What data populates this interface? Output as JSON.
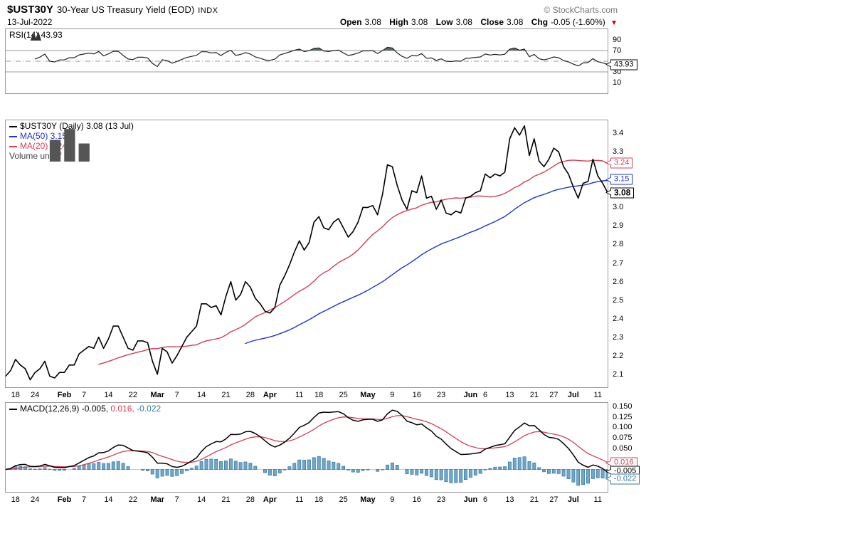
{
  "header": {
    "symbol": "$UST30Y",
    "title": "30-Year US Treasury Yield (EOD)",
    "exchange": "INDX",
    "source": "© StockCharts.com",
    "date": "13-Jul-2022",
    "quote": {
      "open_label": "Open",
      "open": "3.08",
      "high_label": "High",
      "high": "3.08",
      "low_label": "Low",
      "low": "3.08",
      "close_label": "Close",
      "close": "3.08",
      "chg_label": "Chg",
      "chg": "-0.05 (-1.60%)",
      "direction_icon": "▼"
    }
  },
  "panels": {
    "rsi": {
      "legend": "RSI(14) 43.93",
      "yticks": [
        90,
        70,
        30,
        10
      ]
    },
    "price": {
      "legend_price": "$UST30Y (Daily) 3.08 (13 Jul)",
      "legend_ma50": "MA(50) 3.15",
      "legend_ma20": "MA(20) 3.24",
      "legend_volume": "Volume undef",
      "yticks": [
        3.4,
        3.3,
        3.0,
        2.9,
        2.8,
        2.7,
        2.6,
        2.5,
        2.4,
        2.3,
        2.2,
        2.1
      ]
    },
    "macd": {
      "legend_prefix": "MACD(12,26,9)",
      "macd_value": "-0.005,",
      "signal_value": "0.016,",
      "hist_value": "-0.022",
      "yticks": [
        {
          "label": "0.150",
          "value": 0.15
        },
        {
          "label": "0.125",
          "value": 0.125
        },
        {
          "label": "0.100",
          "value": 0.1
        },
        {
          "label": "0.075",
          "value": 0.075
        },
        {
          "label": "0.050",
          "value": 0.05
        }
      ]
    }
  },
  "badges": [
    {
      "panel": "rsi",
      "label": "43.93",
      "value": 43.93,
      "color": "#000000",
      "bold": false
    },
    {
      "panel": "price",
      "label": "3.24",
      "value": 3.24,
      "color": "#d04056",
      "bold": false
    },
    {
      "panel": "price",
      "label": "3.15",
      "value": 3.15,
      "color": "#2233cc",
      "bold": false
    },
    {
      "panel": "price",
      "label": "3.08",
      "value": 3.08,
      "color": "#000000",
      "bold": true
    },
    {
      "panel": "macd",
      "label": "0.016",
      "value": 0.016,
      "color": "#d04056",
      "bold": false
    },
    {
      "panel": "macd",
      "label": "-0.005",
      "value": -0.005,
      "color": "#000000",
      "bold": false
    },
    {
      "panel": "macd",
      "label": "-0.022",
      "value": -0.022,
      "color": "#38789f",
      "bold": false
    }
  ],
  "colors": {
    "price_line": "#000000",
    "ma20": "#d04056",
    "ma50": "#2233cc",
    "macd_line": "#000000",
    "signal": "#d04056",
    "hist_fill": "#6fa8c9",
    "hist_stroke": "#38789f",
    "hist_text": "#38789f",
    "rsi_line": "#222222",
    "rsi_overbought_fill": "#5a6b60",
    "grid": "#999999",
    "panel_border": "#999999",
    "source_text": "#767676",
    "change_down": "#cc0000",
    "volume_text": "#444444",
    "axis_text": "#000000"
  },
  "chart_data": {
    "type": "line",
    "title": "$UST30Y 30-Year US Treasury Yield (EOD) INDX",
    "date": "13-Jul-2022",
    "timeframe": "Daily",
    "ohlc": {
      "open": 3.08,
      "high": 3.08,
      "low": 3.08,
      "close": 3.08,
      "chg": -0.05,
      "chg_pct": -1.6
    },
    "legend_position": "top-left",
    "grid": false,
    "dates": [
      "Jan 13",
      "Jan 14",
      "Jan 18",
      "Jan 19",
      "Jan 20",
      "Jan 21",
      "Jan 24",
      "Jan 25",
      "Jan 26",
      "Jan 27",
      "Jan 28",
      "Jan 31",
      "Feb 1",
      "Feb 2",
      "Feb 3",
      "Feb 4",
      "Feb 7",
      "Feb 8",
      "Feb 9",
      "Feb 10",
      "Feb 11",
      "Feb 14",
      "Feb 15",
      "Feb 16",
      "Feb 17",
      "Feb 18",
      "Feb 22",
      "Feb 23",
      "Feb 24",
      "Feb 25",
      "Feb 28",
      "Mar 1",
      "Mar 2",
      "Mar 3",
      "Mar 4",
      "Mar 7",
      "Mar 8",
      "Mar 9",
      "Mar 10",
      "Mar 11",
      "Mar 14",
      "Mar 15",
      "Mar 16",
      "Mar 17",
      "Mar 18",
      "Mar 21",
      "Mar 22",
      "Mar 23",
      "Mar 24",
      "Mar 25",
      "Mar 28",
      "Mar 29",
      "Mar 30",
      "Mar 31",
      "Apr 1",
      "Apr 4",
      "Apr 5",
      "Apr 6",
      "Apr 7",
      "Apr 8",
      "Apr 11",
      "Apr 12",
      "Apr 13",
      "Apr 14",
      "Apr 18",
      "Apr 19",
      "Apr 20",
      "Apr 21",
      "Apr 22",
      "Apr 25",
      "Apr 26",
      "Apr 27",
      "Apr 28",
      "Apr 29",
      "May 2",
      "May 3",
      "May 4",
      "May 5",
      "May 6",
      "May 9",
      "May 10",
      "May 11",
      "May 12",
      "May 13",
      "May 16",
      "May 17",
      "May 18",
      "May 19",
      "May 20",
      "May 23",
      "May 24",
      "May 25",
      "May 26",
      "May 27",
      "May 31",
      "Jun 1",
      "Jun 2",
      "Jun 3",
      "Jun 6",
      "Jun 7",
      "Jun 8",
      "Jun 9",
      "Jun 10",
      "Jun 13",
      "Jun 14",
      "Jun 15",
      "Jun 16",
      "Jun 17",
      "Jun 21",
      "Jun 22",
      "Jun 23",
      "Jun 24",
      "Jun 27",
      "Jun 28",
      "Jun 29",
      "Jun 30",
      "Jul 1",
      "Jul 5",
      "Jul 6",
      "Jul 7",
      "Jul 8",
      "Jul 11",
      "Jul 12",
      "Jul 13"
    ],
    "close": [
      2.09,
      2.12,
      2.18,
      2.15,
      2.13,
      2.07,
      2.11,
      2.13,
      2.17,
      2.09,
      2.08,
      2.11,
      2.11,
      2.15,
      2.15,
      2.21,
      2.23,
      2.25,
      2.24,
      2.3,
      2.24,
      2.29,
      2.36,
      2.36,
      2.3,
      2.24,
      2.23,
      2.28,
      2.28,
      2.27,
      2.17,
      2.1,
      2.24,
      2.22,
      2.16,
      2.2,
      2.25,
      2.3,
      2.33,
      2.36,
      2.48,
      2.48,
      2.46,
      2.47,
      2.42,
      2.52,
      2.6,
      2.5,
      2.53,
      2.6,
      2.57,
      2.51,
      2.48,
      2.44,
      2.43,
      2.46,
      2.58,
      2.63,
      2.69,
      2.76,
      2.82,
      2.77,
      2.81,
      2.92,
      2.95,
      2.89,
      2.88,
      2.92,
      2.94,
      2.89,
      2.84,
      2.87,
      2.92,
      3.0,
      3.0,
      3.01,
      2.96,
      3.07,
      3.23,
      3.22,
      3.12,
      3.04,
      2.99,
      3.09,
      3.08,
      3.17,
      3.05,
      3.06,
      2.99,
      3.04,
      2.97,
      2.96,
      2.98,
      2.97,
      3.05,
      3.06,
      3.08,
      3.09,
      3.18,
      3.16,
      3.18,
      3.17,
      3.19,
      3.37,
      3.43,
      3.39,
      3.44,
      3.28,
      3.37,
      3.25,
      3.22,
      3.26,
      3.32,
      3.3,
      3.22,
      3.18,
      3.11,
      3.05,
      3.13,
      3.14,
      3.26,
      3.17,
      3.13,
      3.08
    ],
    "x_ticks": [
      {
        "i": 2,
        "label": "18"
      },
      {
        "i": 6,
        "label": "24"
      },
      {
        "i": 12,
        "label": "Feb",
        "bold": true
      },
      {
        "i": 16,
        "label": "7"
      },
      {
        "i": 21,
        "label": "14"
      },
      {
        "i": 26,
        "label": "22"
      },
      {
        "i": 31,
        "label": "Mar",
        "bold": true
      },
      {
        "i": 35,
        "label": "7"
      },
      {
        "i": 40,
        "label": "14"
      },
      {
        "i": 45,
        "label": "21"
      },
      {
        "i": 50,
        "label": "28"
      },
      {
        "i": 54,
        "label": "Apr",
        "bold": true
      },
      {
        "i": 60,
        "label": "11"
      },
      {
        "i": 64,
        "label": "18"
      },
      {
        "i": 69,
        "label": "25"
      },
      {
        "i": 74,
        "label": "May",
        "bold": true
      },
      {
        "i": 79,
        "label": "9"
      },
      {
        "i": 84,
        "label": "16"
      },
      {
        "i": 89,
        "label": "23"
      },
      {
        "i": 95,
        "label": "Jun",
        "bold": true
      },
      {
        "i": 98,
        "label": "6"
      },
      {
        "i": 103,
        "label": "13"
      },
      {
        "i": 108,
        "label": "21"
      },
      {
        "i": 112,
        "label": "27"
      },
      {
        "i": 116,
        "label": "Jul",
        "bold": true
      },
      {
        "i": 121,
        "label": "11"
      }
    ],
    "panels": {
      "rsi": {
        "indicator": "RSI(14)",
        "last": 43.93,
        "ylim": [
          -10,
          110
        ],
        "gridlines": [
          70,
          50,
          30
        ],
        "overbought": 70,
        "oversold": 30
      },
      "price": {
        "series": [
          {
            "name": "$UST30Y (Daily)",
            "derive": "close",
            "last": 3.08
          },
          {
            "name": "MA(50)",
            "derive": "sma50",
            "last": 3.15
          },
          {
            "name": "MA(20)",
            "derive": "sma20",
            "last": 3.24
          }
        ],
        "volume": "undef",
        "ylim": [
          2.03,
          3.47
        ]
      },
      "macd": {
        "indicator": "MACD(12,26,9)",
        "macd_last": -0.005,
        "signal_last": 0.016,
        "hist_last": -0.022,
        "ylim": [
          -0.0533,
          0.1583
        ]
      }
    }
  }
}
